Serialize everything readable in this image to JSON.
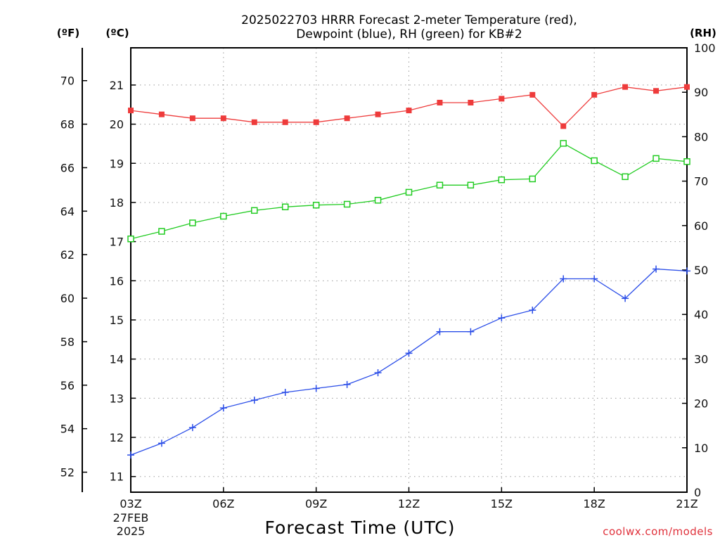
{
  "chart_data": {
    "type": "line",
    "title_line1": "2025022703 HRRR Forecast 2-meter Temperature (red),",
    "title_line2": "Dewpoint (blue), RH (green) for KB#2",
    "xlabel": "Forecast Time (UTC)",
    "credit": "coolwx.com/models",
    "units": {
      "fahrenheit": "(ºF)",
      "celsius": "(ºC)",
      "rh": "(RH)"
    },
    "x": [
      0,
      1,
      2,
      3,
      4,
      5,
      6,
      7,
      8,
      9,
      10,
      11,
      12,
      13,
      14,
      15,
      16,
      17,
      18
    ],
    "x_ticks": [
      {
        "x": 0,
        "label": "03Z",
        "sub1": "27FEB",
        "sub2": "2025"
      },
      {
        "x": 3,
        "label": "06Z"
      },
      {
        "x": 6,
        "label": "09Z"
      },
      {
        "x": 9,
        "label": "12Z"
      },
      {
        "x": 12,
        "label": "15Z"
      },
      {
        "x": 15,
        "label": "18Z"
      },
      {
        "x": 18,
        "label": "21Z"
      }
    ],
    "xlim": [
      0,
      18
    ],
    "celsius_axis": {
      "lim": [
        10.6,
        21.95
      ],
      "ticks": [
        "11",
        "12",
        "13",
        "14",
        "15",
        "16",
        "17",
        "18",
        "19",
        "20",
        "21"
      ]
    },
    "fahrenheit_axis": {
      "lim": [
        51.08,
        71.51
      ],
      "ticks": [
        "52",
        "54",
        "56",
        "58",
        "60",
        "62",
        "64",
        "66",
        "68",
        "70"
      ]
    },
    "rh_axis": {
      "lim": [
        0,
        100
      ],
      "ticks": [
        "0",
        "10",
        "20",
        "30",
        "40",
        "50",
        "60",
        "70",
        "80",
        "90",
        "100"
      ]
    },
    "grid": true,
    "series": [
      {
        "name": "Temperature",
        "axis": "celsius",
        "color": "#ee3b3b",
        "marker": "filled-square",
        "values": [
          20.35,
          20.25,
          20.15,
          20.15,
          20.05,
          20.05,
          20.05,
          20.15,
          20.25,
          20.35,
          20.55,
          20.55,
          20.65,
          20.75,
          19.95,
          20.75,
          20.95,
          20.85,
          20.95
        ]
      },
      {
        "name": "Dewpoint",
        "axis": "celsius",
        "color": "#2a4de8",
        "marker": "plus",
        "values": [
          11.55,
          11.85,
          12.25,
          12.75,
          12.95,
          13.15,
          13.25,
          13.35,
          13.65,
          14.15,
          14.7,
          14.7,
          15.05,
          15.25,
          16.05,
          16.05,
          15.55,
          16.3,
          16.25
        ]
      },
      {
        "name": "RH",
        "axis": "rh",
        "color": "#22cc22",
        "marker": "open-square",
        "values": [
          57,
          58.7,
          60.6,
          62.1,
          63.4,
          64.2,
          64.6,
          64.8,
          65.7,
          67.5,
          69.1,
          69.1,
          70.3,
          70.5,
          78.5,
          74.6,
          71,
          75.1,
          74.4
        ]
      }
    ]
  }
}
